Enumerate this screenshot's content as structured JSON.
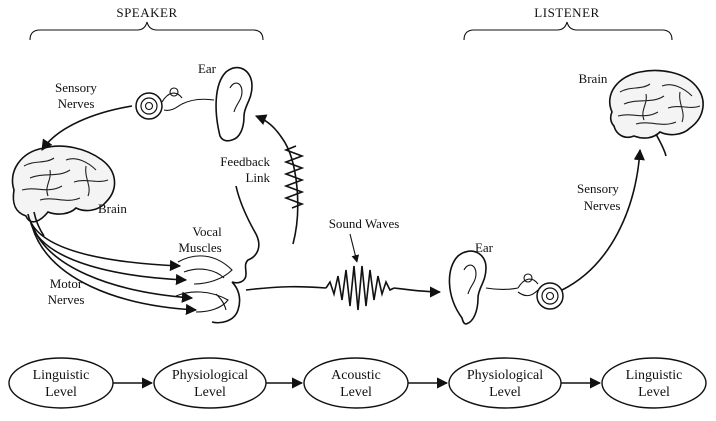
{
  "headers": {
    "speaker": "SPEAKER",
    "listener": "LISTENER"
  },
  "speaker": {
    "ear": "Ear",
    "sensory_nerves": [
      "Sensory",
      "Nerves"
    ],
    "brain": "Brain",
    "feedback_link": [
      "Feedback",
      "Link"
    ],
    "vocal_muscles": [
      "Vocal",
      "Muscles"
    ],
    "motor_nerves": [
      "Motor",
      "Nerves"
    ]
  },
  "sound_waves": "Sound Waves",
  "listener": {
    "ear": "Ear",
    "brain": "Brain",
    "sensory_nerves": [
      "Sensory",
      "Nerves"
    ]
  },
  "levels": [
    {
      "line1": "Linguistic",
      "line2": "Level"
    },
    {
      "line1": "Physiological",
      "line2": "Level"
    },
    {
      "line1": "Acoustic",
      "line2": "Level"
    },
    {
      "line1": "Physiological",
      "line2": "Level"
    },
    {
      "line1": "Linguistic",
      "line2": "Level"
    }
  ]
}
